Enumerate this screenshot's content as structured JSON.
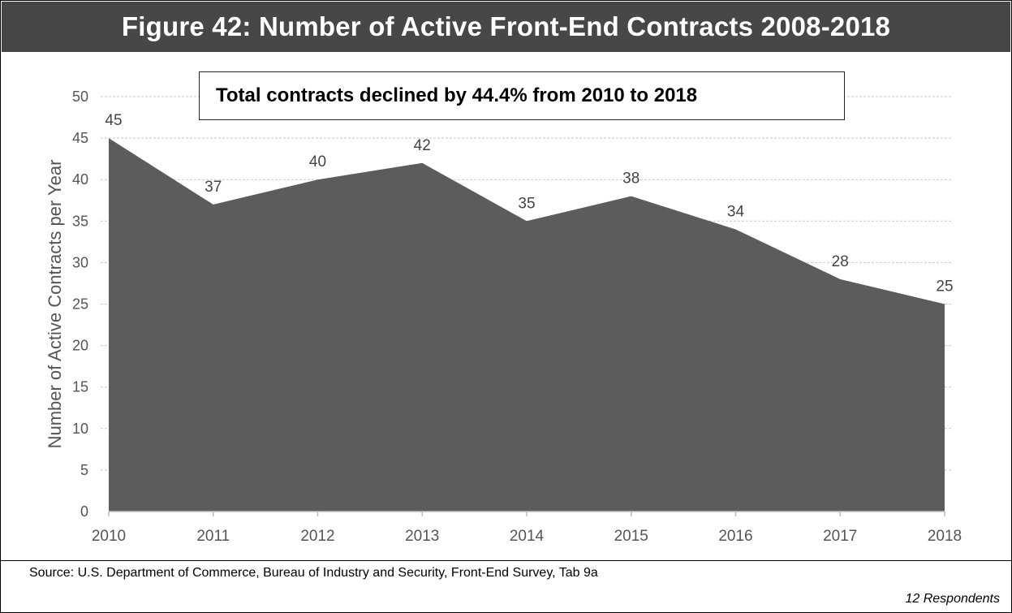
{
  "figure": {
    "title": "Figure 42: Number of Active Front-End Contracts 2008-2018",
    "annotation": "Total contracts declined by 44.4% from 2010 to 2018",
    "source": "Source: U.S. Department of Commerce, Bureau of Industry and Security, Front-End Survey, Tab 9a",
    "respondents": "12 Respondents"
  },
  "chart_data": {
    "type": "area",
    "title": "Figure 42: Number of Active Front-End Contracts 2008-2018",
    "xlabel": "",
    "ylabel": "Number of Active Contracts per Year",
    "categories": [
      "2010",
      "2011",
      "2012",
      "2013",
      "2014",
      "2015",
      "2016",
      "2017",
      "2018"
    ],
    "series": [
      {
        "values": [
          45,
          37,
          40,
          42,
          35,
          38,
          34,
          28,
          25
        ]
      }
    ],
    "ylim": [
      0,
      50
    ],
    "yticks": [
      0,
      5,
      10,
      15,
      20,
      25,
      30,
      35,
      40,
      45,
      50
    ],
    "grid": true,
    "data_labels": true,
    "legend": "none",
    "colors": {
      "area_fill": "#5c5c5c",
      "gridline": "#c8c8c8",
      "axis_text": "#555555",
      "data_label": "#444444",
      "title_bar": "#474747"
    }
  }
}
